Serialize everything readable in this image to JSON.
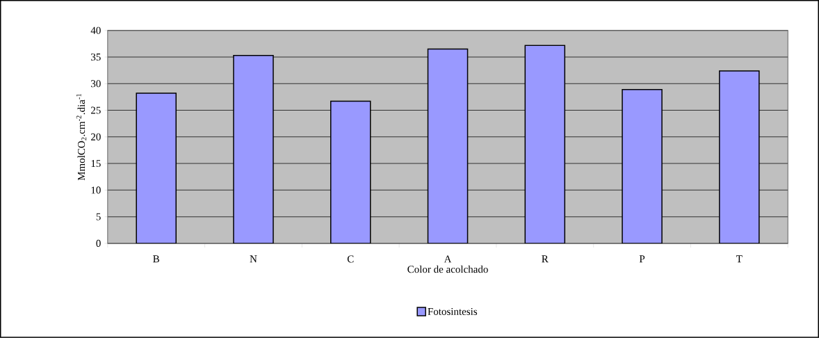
{
  "chart_data": {
    "type": "bar",
    "xlabel": "Color de acolchado",
    "ylabel": "MmolCO$_{2}$.cm$^{-2}$.dia$^{-1}$",
    "categories": [
      "B",
      "N",
      "C",
      "A",
      "R",
      "P",
      "T"
    ],
    "series": [
      {
        "name": "Fotosintesis",
        "color": "#9999ff",
        "values": [
          28.2,
          35.3,
          26.7,
          36.5,
          37.2,
          28.9,
          32.4
        ]
      }
    ],
    "ylim": [
      0,
      40
    ],
    "yticks": [
      0,
      5,
      10,
      15,
      20,
      25,
      30,
      35,
      40
    ],
    "grid": "y",
    "legend": "bottom"
  }
}
